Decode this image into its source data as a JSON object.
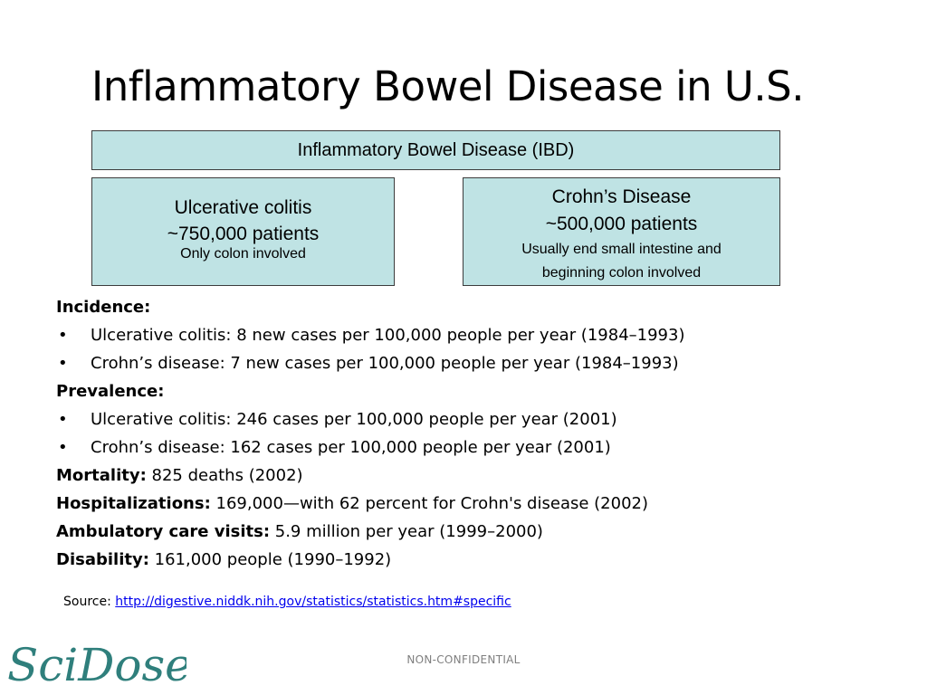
{
  "slide": {
    "title": "Inflammatory Bowel Disease in U.S."
  },
  "diagram": {
    "ibd": "Inflammatory Bowel Disease (IBD)",
    "ulcerative": {
      "name": "Ulcerative colitis",
      "patients": "~750,000 patients",
      "note": "Only colon involved"
    },
    "crohns": {
      "name": "Crohn’s Disease",
      "patients": "~500,000 patients",
      "note_line1": "Usually end small intestine and",
      "note_line2": "beginning colon involved"
    },
    "fill_color": "#bfe3e4"
  },
  "stats": {
    "incidence_label": "Incidence:",
    "incidence": [
      "Ulcerative colitis: 8 new cases per 100,000 people per year (1984–1993)",
      "Crohn’s disease: 7 new cases per 100,000 people per year (1984–1993)"
    ],
    "prevalence_label": "Prevalence:",
    "prevalence": [
      "Ulcerative colitis: 246 cases per 100,000 people per year (2001)",
      "Crohn’s disease: 162 cases per 100,000 people per year (2001)"
    ],
    "mortality": {
      "label": "Mortality:",
      "value": " 825 deaths (2002)"
    },
    "hospitalizations": {
      "label": "Hospitalizations:",
      "value": " 169,000—with 62 percent for Crohn's disease (2002)"
    },
    "ambulatory": {
      "label": "Ambulatory care visits:",
      "value": " 5.9 million per year (1999–2000)"
    },
    "disability": {
      "label": "Disability:",
      "value": " 161,000 people (1990–1992)"
    }
  },
  "source": {
    "label": "Source: ",
    "url": "http://digestive.niddk.nih.gov/statistics/statistics.htm#specific"
  },
  "footer": {
    "text": "NON-CONFIDENTIAL"
  },
  "logo": {
    "text": "SciDose",
    "color": "#2f7f7c"
  }
}
